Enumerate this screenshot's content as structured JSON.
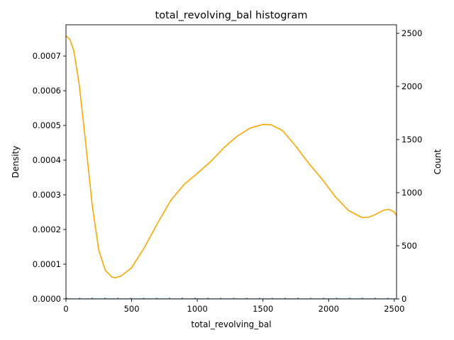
{
  "chart_data": {
    "type": "histogram",
    "title": "total_revolving_bal histogram",
    "xlabel": "total_revolving_bal",
    "ylabel_left": "Density",
    "ylabel_right": "Count",
    "xlim": [
      0,
      2517
    ],
    "ylim_left": [
      0,
      0.00079
    ],
    "ylim_right": [
      0,
      2580
    ],
    "xticks": [
      "0",
      "500",
      "1000",
      "1500",
      "2000",
      "2500"
    ],
    "yticks_left": [
      "0.0000",
      "0.0001",
      "0.0002",
      "0.0003",
      "0.0004",
      "0.0005",
      "0.0006",
      "0.0007"
    ],
    "yticks_right": [
      "0",
      "500",
      "1000",
      "1500",
      "2000",
      "2500"
    ],
    "histogram_color": "#1f77b4",
    "kde_color": "#ffa500",
    "series": [
      {
        "type": "kde_line",
        "points": [
          [
            0,
            0.000758
          ],
          [
            30,
            0.000748
          ],
          [
            60,
            0.000715
          ],
          [
            100,
            0.00062
          ],
          [
            150,
            0.00045
          ],
          [
            200,
            0.00027
          ],
          [
            250,
            0.00014
          ],
          [
            300,
            8.2e-05
          ],
          [
            350,
            6.3e-05
          ],
          [
            375,
            6.1e-05
          ],
          [
            420,
            6.6e-05
          ],
          [
            500,
            9e-05
          ],
          [
            600,
            0.00015
          ],
          [
            700,
            0.00022
          ],
          [
            800,
            0.000285
          ],
          [
            900,
            0.00033
          ],
          [
            1000,
            0.000362
          ],
          [
            1100,
            0.000395
          ],
          [
            1200,
            0.000435
          ],
          [
            1300,
            0.000468
          ],
          [
            1400,
            0.000492
          ],
          [
            1500,
            0.000503
          ],
          [
            1560,
            0.000502
          ],
          [
            1650,
            0.000485
          ],
          [
            1750,
            0.00044
          ],
          [
            1850,
            0.00039
          ],
          [
            1950,
            0.000345
          ],
          [
            2050,
            0.000295
          ],
          [
            2150,
            0.000255
          ],
          [
            2250,
            0.000235
          ],
          [
            2300,
            0.000235
          ],
          [
            2350,
            0.000242
          ],
          [
            2420,
            0.000256
          ],
          [
            2460,
            0.000258
          ],
          [
            2500,
            0.00025
          ],
          [
            2517,
            0.00024
          ]
        ]
      }
    ]
  }
}
